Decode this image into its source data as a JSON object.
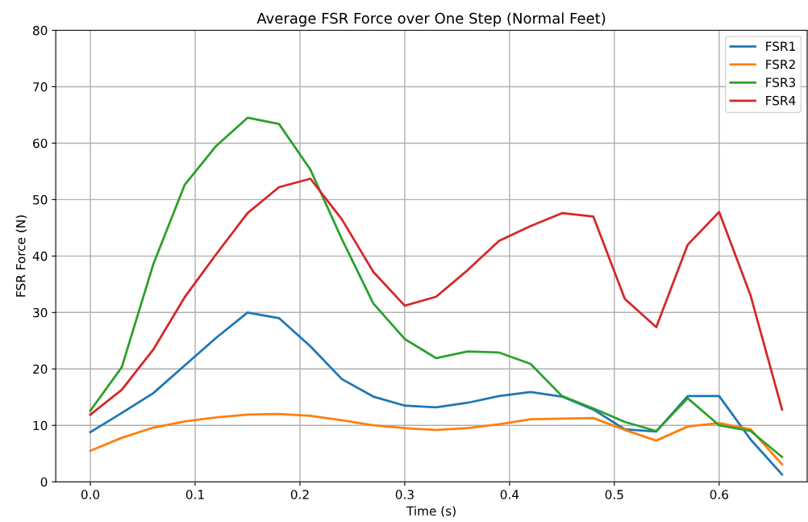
{
  "chart_data": {
    "type": "line",
    "title": "Average FSR Force over One Step (Normal Feet)",
    "xlabel": "Time (s)",
    "ylabel": "FSR Force (N)",
    "x": [
      0.0,
      0.03,
      0.06,
      0.09,
      0.12,
      0.15,
      0.18,
      0.21,
      0.24,
      0.27,
      0.3,
      0.33,
      0.36,
      0.39,
      0.42,
      0.45,
      0.48,
      0.51,
      0.54,
      0.57,
      0.6,
      0.63,
      0.66
    ],
    "series": [
      {
        "name": "FSR1",
        "color": "#1f77b4",
        "values": [
          8.8,
          12.2,
          15.7,
          20.6,
          25.5,
          30.0,
          29.0,
          24.0,
          18.2,
          15.1,
          13.5,
          13.2,
          14.0,
          15.2,
          15.9,
          15.1,
          12.8,
          9.3,
          8.9,
          15.2,
          15.2,
          7.5,
          1.3
        ]
      },
      {
        "name": "FSR2",
        "color": "#ff7f0e",
        "values": [
          5.5,
          7.8,
          9.6,
          10.7,
          11.4,
          11.9,
          12.0,
          11.7,
          10.9,
          10.0,
          9.5,
          9.2,
          9.5,
          10.2,
          11.1,
          11.2,
          11.3,
          9.2,
          7.3,
          9.8,
          10.4,
          9.3,
          3.1
        ]
      },
      {
        "name": "FSR3",
        "color": "#2ca02c",
        "values": [
          12.6,
          20.3,
          38.5,
          52.6,
          59.5,
          64.5,
          63.4,
          55.3,
          43.0,
          31.6,
          25.3,
          21.9,
          23.1,
          22.9,
          20.9,
          15.2,
          13.0,
          10.6,
          9.0,
          14.8,
          10.0,
          9.0,
          4.4
        ]
      },
      {
        "name": "FSR4",
        "color": "#d62728",
        "values": [
          11.9,
          16.3,
          23.4,
          32.7,
          40.3,
          47.6,
          52.2,
          53.7,
          46.5,
          37.2,
          31.2,
          32.8,
          37.5,
          42.7,
          45.3,
          47.6,
          47.0,
          32.4,
          27.4,
          42.0,
          47.8,
          33.0,
          12.8
        ]
      }
    ],
    "xlim": [
      -0.033,
      0.684
    ],
    "ylim": [
      0,
      80
    ],
    "xticks": [
      {
        "value": 0.0,
        "label": "0.0"
      },
      0.1,
      0.2,
      0.3,
      0.4,
      0.5,
      0.6
    ],
    "yticks": [
      0,
      10,
      20,
      30,
      40,
      50,
      60,
      70,
      80
    ],
    "grid": true,
    "legend": "top right",
    "line_style": "solid",
    "marker": "none"
  }
}
